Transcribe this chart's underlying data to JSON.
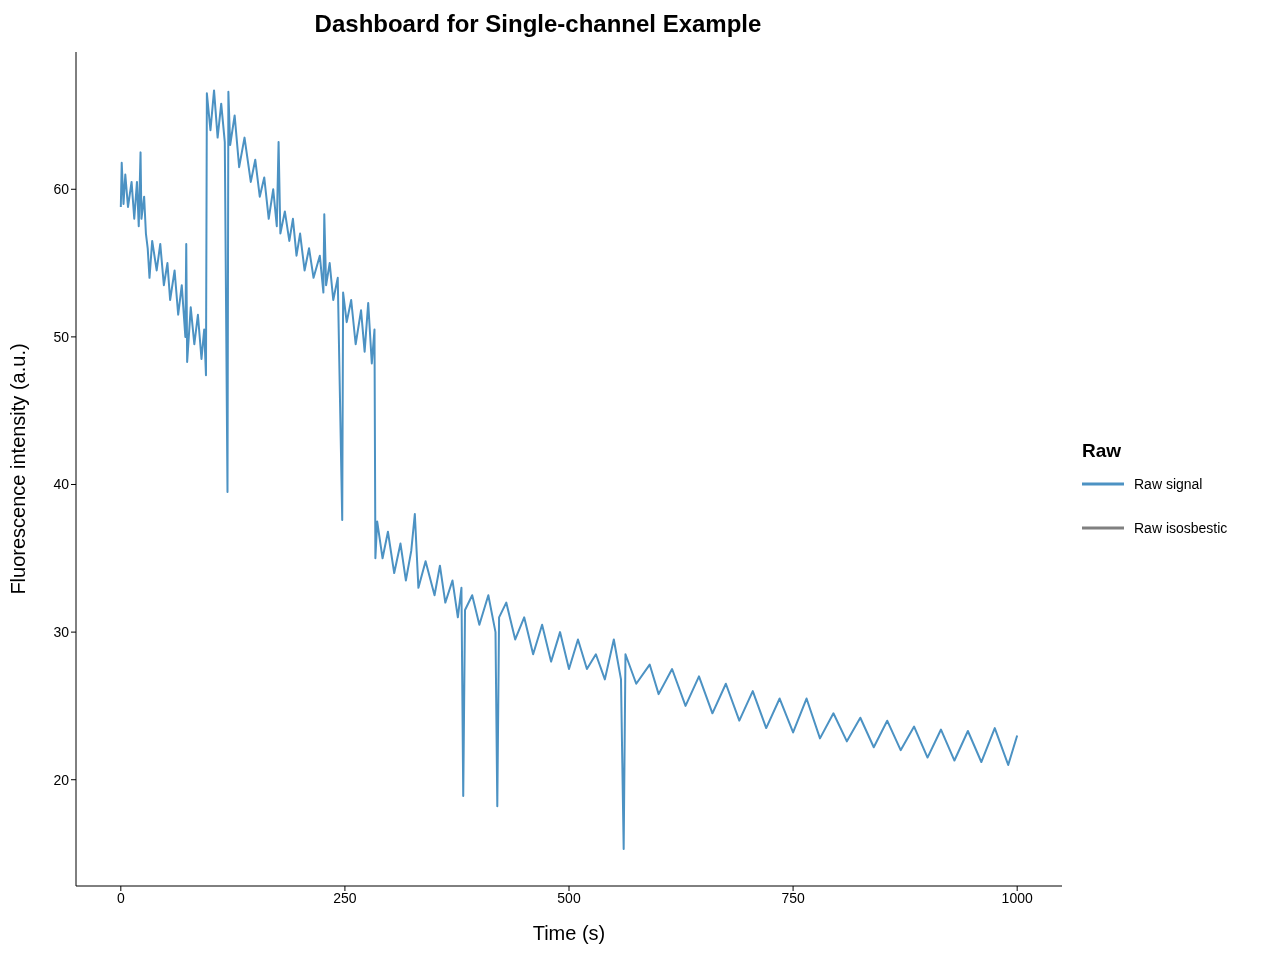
{
  "chart_data": {
    "type": "line",
    "title": "Dashboard for Single-channel Example",
    "xlabel": "Time (s)",
    "ylabel": "Fluorescence intensity (a.u.)",
    "legend_title": "Raw",
    "legend": "right",
    "grid": false,
    "marker": "none",
    "line_style": "solid",
    "xlim": [
      -50,
      1050
    ],
    "xticks": [
      0,
      250,
      500,
      750,
      1000
    ],
    "ylim": [
      12.8,
      69.3
    ],
    "yticks": [
      20,
      30,
      40,
      50,
      60
    ],
    "x": [
      0,
      1,
      3,
      5,
      8,
      12,
      15,
      18,
      20,
      22,
      23,
      26,
      28,
      30,
      32,
      35,
      40,
      44,
      48,
      52,
      55,
      60,
      64,
      68,
      72,
      73,
      74,
      78,
      82,
      86,
      90,
      93,
      95,
      96,
      100,
      104,
      108,
      112,
      116,
      119,
      120,
      122,
      127,
      132,
      138,
      145,
      150,
      155,
      160,
      165,
      170,
      174,
      176,
      178,
      183,
      188,
      192,
      196,
      200,
      205,
      210,
      215,
      222,
      226,
      227,
      229,
      233,
      237,
      242,
      247,
      248,
      252,
      257,
      262,
      268,
      272,
      276,
      280,
      283,
      284,
      286,
      292,
      298,
      305,
      312,
      318,
      324,
      328,
      332,
      340,
      350,
      356,
      362,
      370,
      376,
      380,
      382,
      384,
      392,
      400,
      410,
      418,
      420,
      422,
      430,
      440,
      450,
      460,
      470,
      480,
      490,
      500,
      510,
      520,
      530,
      540,
      550,
      558,
      561,
      563,
      575,
      590,
      600,
      615,
      630,
      645,
      660,
      675,
      690,
      705,
      720,
      735,
      750,
      765,
      780,
      795,
      810,
      825,
      840,
      855,
      870,
      885,
      900,
      915,
      930,
      945,
      960,
      975,
      990,
      1000
    ],
    "series": [
      {
        "name": "Raw signal",
        "color": "#4c92c3",
        "values": [
          58.8,
          61.8,
          59,
          61,
          58.8,
          60.5,
          58,
          60.5,
          57.5,
          62.5,
          58,
          59.5,
          57,
          56,
          54,
          56.5,
          54.5,
          56.3,
          53.5,
          55,
          52.5,
          54.5,
          51.5,
          53.5,
          50,
          56.3,
          48.3,
          52,
          49.5,
          51.5,
          48.5,
          50.5,
          47.4,
          66.5,
          64,
          66.7,
          63.5,
          65.8,
          63.2,
          39.5,
          66.6,
          63,
          65,
          61.5,
          63.5,
          60.5,
          62,
          59.5,
          60.8,
          58,
          60,
          57.5,
          63.2,
          57,
          58.5,
          56.5,
          58,
          55.5,
          57,
          54.5,
          56,
          54,
          55.5,
          53,
          58.3,
          53.5,
          55,
          52.5,
          54,
          37.6,
          53,
          51,
          52.5,
          49.5,
          51.8,
          49,
          52.3,
          48.2,
          50.5,
          35,
          37.5,
          35,
          36.8,
          34,
          36,
          33.5,
          35.5,
          38,
          33,
          34.8,
          32.5,
          34.5,
          32,
          33.5,
          31,
          33,
          18.9,
          31.5,
          32.5,
          30.5,
          32.5,
          30,
          18.2,
          31,
          32,
          29.5,
          31,
          28.5,
          30.5,
          28,
          30,
          27.5,
          29.5,
          27.5,
          28.5,
          26.8,
          29.5,
          26.8,
          15.3,
          28.5,
          26.5,
          27.8,
          25.8,
          27.5,
          25,
          27,
          24.5,
          26.5,
          24,
          26,
          23.5,
          25.5,
          23.2,
          25.5,
          22.8,
          24.5,
          22.6,
          24.2,
          22.2,
          24,
          22,
          23.6,
          21.5,
          23.4,
          21.3,
          23.3,
          21.2,
          23.5,
          21,
          23
        ]
      },
      {
        "name": "Raw isosbestic",
        "color": "#808080",
        "values": [
          null,
          null,
          null,
          null,
          null,
          null,
          null,
          null,
          null,
          null,
          null,
          null,
          null,
          null,
          null,
          null,
          null,
          null,
          null,
          null,
          null,
          null,
          null,
          null,
          null,
          null,
          null,
          null,
          null,
          null,
          null,
          null,
          null,
          null,
          null,
          null,
          null,
          null,
          null,
          null,
          null,
          null,
          null,
          null,
          null,
          null,
          null,
          null,
          null,
          null,
          null,
          null,
          null,
          null,
          null,
          null,
          null,
          null,
          null,
          null,
          null,
          null,
          null,
          null,
          null,
          null,
          null,
          null,
          null,
          null,
          null,
          null,
          null,
          null,
          null,
          null,
          null,
          null,
          null,
          null,
          null,
          null,
          null,
          null,
          null,
          null,
          null,
          null,
          null,
          null,
          null,
          null,
          null,
          null,
          null,
          null,
          null,
          null,
          null,
          null,
          null,
          null,
          null,
          null,
          null,
          null,
          null,
          null,
          null,
          null,
          null,
          null,
          null,
          null,
          null,
          null,
          null,
          null,
          null,
          null,
          null,
          null,
          null,
          null,
          null,
          null,
          null,
          null,
          null,
          null,
          null,
          null,
          null,
          null,
          null,
          null,
          null,
          null,
          null,
          null,
          null,
          null,
          null,
          null,
          null,
          null,
          null,
          null,
          null,
          null
        ]
      }
    ]
  }
}
